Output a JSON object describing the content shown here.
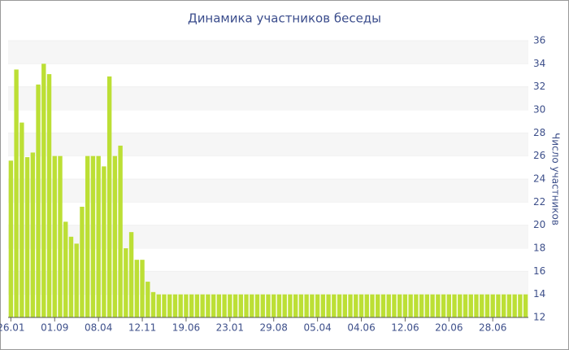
{
  "chart_data": {
    "type": "bar",
    "title": "Динамика участников беседы",
    "y_label": "Число участников",
    "categories": [
      "26.01",
      null,
      null,
      null,
      null,
      null,
      null,
      null,
      "01.09",
      null,
      null,
      null,
      null,
      null,
      null,
      null,
      "08.04",
      null,
      null,
      null,
      null,
      null,
      null,
      null,
      "12.11",
      null,
      null,
      null,
      null,
      null,
      null,
      null,
      "19.06",
      null,
      null,
      null,
      null,
      null,
      null,
      null,
      "23.01",
      null,
      null,
      null,
      null,
      null,
      null,
      null,
      "29.08",
      null,
      null,
      null,
      null,
      null,
      null,
      null,
      "05.04",
      null,
      null,
      null,
      null,
      null,
      null,
      null,
      "04.06",
      null,
      null,
      null,
      null,
      null,
      null,
      null,
      "12.06",
      null,
      null,
      null,
      null,
      null,
      null,
      null,
      "20.06",
      null,
      null,
      null,
      null,
      null,
      null,
      null,
      "28.06",
      null,
      null,
      null,
      null,
      null,
      null
    ],
    "values": [
      25.6,
      33.5,
      28.9,
      25.9,
      26.3,
      32.2,
      34,
      33.1,
      26,
      26,
      20.3,
      19,
      18.4,
      21.6,
      26,
      26,
      26,
      25.1,
      32.9,
      26,
      26.9,
      18,
      19.4,
      17,
      17,
      15.1,
      14.2,
      14,
      14,
      14,
      14,
      14,
      14,
      14,
      14,
      14,
      14,
      14,
      14,
      14,
      14,
      14,
      14,
      14,
      14,
      14,
      14,
      14,
      14,
      14,
      14,
      14,
      14,
      14,
      14,
      14,
      14,
      14,
      14,
      14,
      14,
      14,
      14,
      14,
      14,
      14,
      14,
      14,
      14,
      14,
      14,
      14,
      14,
      14,
      14,
      14,
      14,
      14,
      14,
      14,
      14,
      14,
      14,
      14,
      14,
      14,
      14,
      14,
      14,
      14,
      14,
      14,
      14,
      14,
      14
    ],
    "color": "#bcdf35",
    "ylim": [
      12,
      36
    ],
    "yticks": [
      12,
      14,
      16,
      18,
      20,
      22,
      24,
      26,
      28,
      30,
      32,
      34,
      36
    ],
    "grid": true
  }
}
